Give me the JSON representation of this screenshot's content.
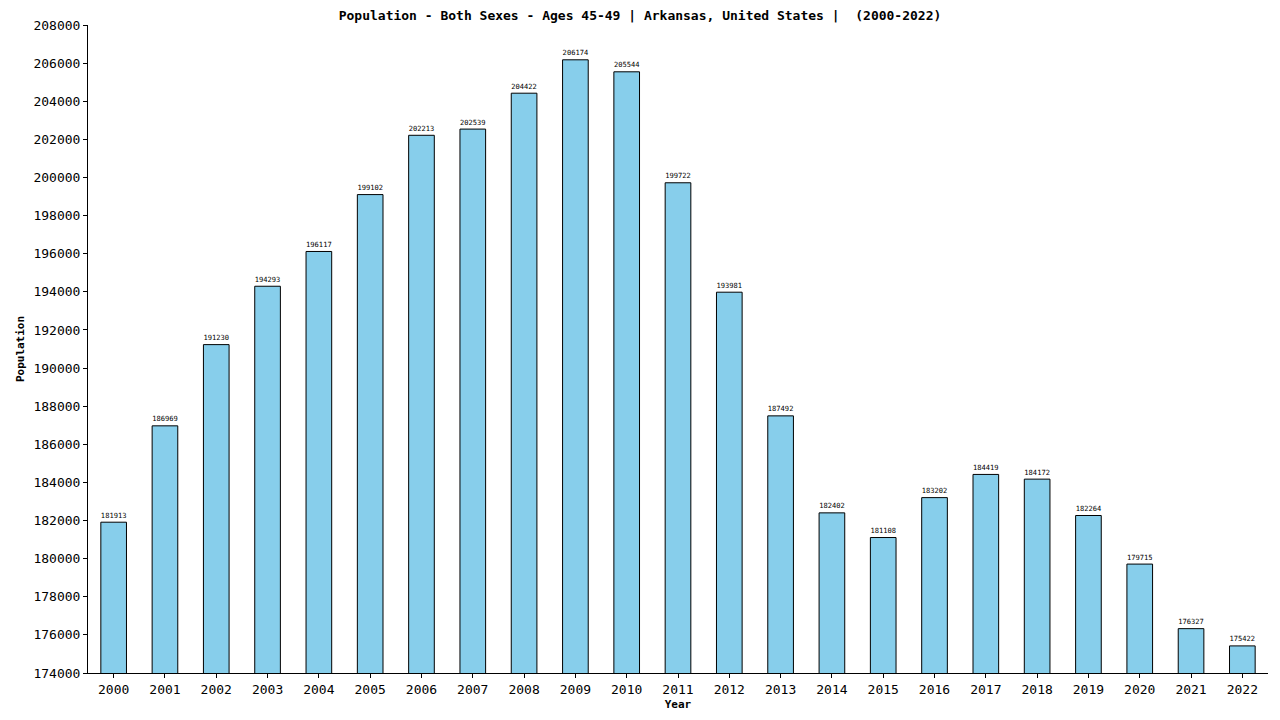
{
  "chart_data": {
    "type": "bar",
    "title": "Population - Both Sexes - Ages 45-49 | Arkansas, United States |  (2000-2022)",
    "x_label": "Year",
    "y_label": "Population",
    "categories": [
      "2000",
      "2001",
      "2002",
      "2003",
      "2004",
      "2005",
      "2006",
      "2007",
      "2008",
      "2009",
      "2010",
      "2011",
      "2012",
      "2013",
      "2014",
      "2015",
      "2016",
      "2017",
      "2018",
      "2019",
      "2020",
      "2021",
      "2022"
    ],
    "values": [
      181913,
      186969,
      191230,
      194293,
      196117,
      199102,
      202213,
      202539,
      204422,
      206174,
      205544,
      199722,
      193981,
      187492,
      182402,
      181108,
      183202,
      184419,
      184172,
      182264,
      179715,
      176327,
      175422
    ],
    "color": "#87ceeb",
    "ylim": [
      174000,
      208000
    ],
    "yticks": [
      174000,
      176000,
      178000,
      180000,
      182000,
      184000,
      186000,
      188000,
      190000,
      192000,
      194000,
      196000,
      198000,
      200000,
      202000,
      204000,
      206000,
      208000
    ],
    "grid": false,
    "data_labels": true
  }
}
